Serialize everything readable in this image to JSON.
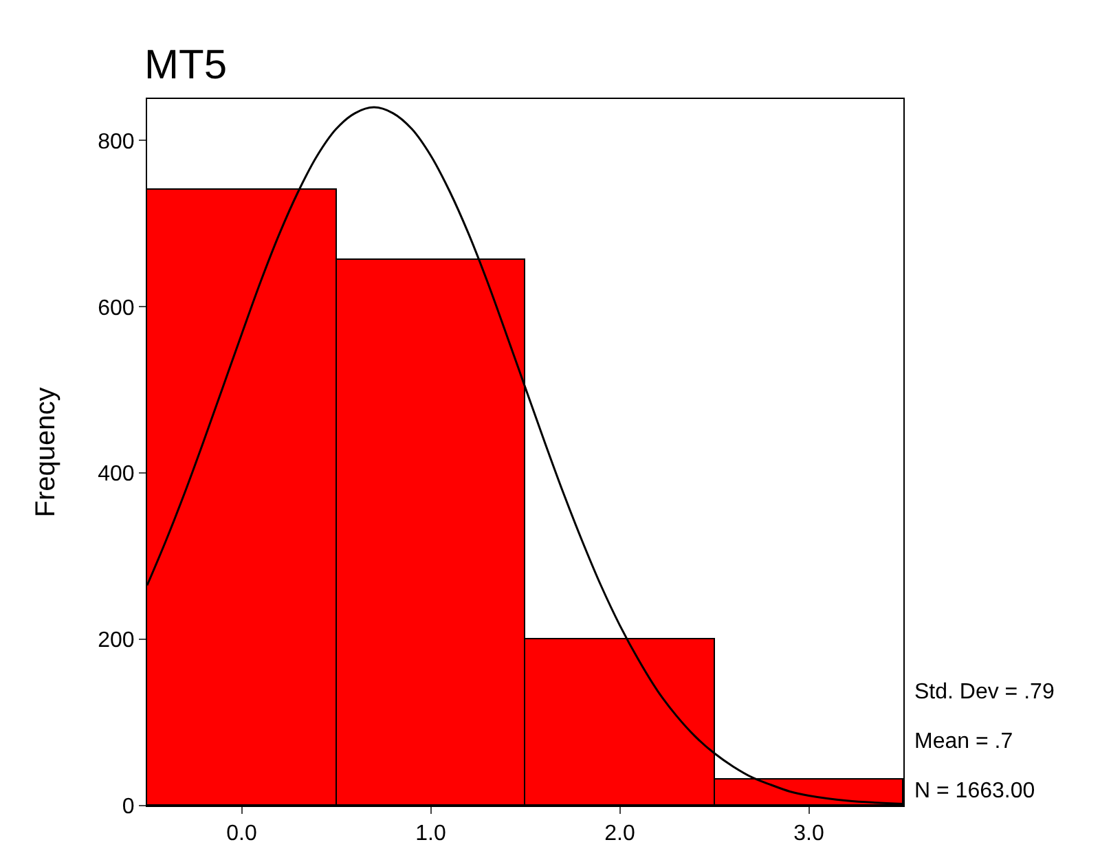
{
  "chart_data": {
    "type": "histogram",
    "title": "MT5",
    "ylabel": "Frequency",
    "bins": [
      -0.5,
      0.5,
      1.5,
      2.5,
      3.5
    ],
    "values": [
      741,
      657,
      200,
      32
    ],
    "color": "#ff0000",
    "series": [
      {
        "type": "line",
        "color": "#000000",
        "x": [
          -0.5,
          -0.4,
          -0.3,
          -0.2,
          -0.1,
          0,
          0.1,
          0.2,
          0.3,
          0.4,
          0.5,
          0.6,
          0.7,
          0.8,
          0.9,
          1.0,
          1.1,
          1.2,
          1.3,
          1.4,
          1.5,
          1.6,
          1.7,
          1.8,
          1.9,
          2.0,
          2.1,
          2.2,
          2.3,
          2.4,
          2.5,
          2.6,
          2.7,
          2.8,
          2.9,
          3.0,
          3.2,
          3.5
        ],
        "values": [
          265,
          319,
          377,
          439,
          503,
          567,
          630,
          688,
          739,
          782,
          814,
          833,
          840,
          833,
          814,
          782,
          739,
          688,
          630,
          567,
          503,
          439,
          377,
          319,
          265,
          217,
          175,
          138,
          108,
          83,
          63,
          47,
          34,
          25,
          17,
          12,
          6,
          2
        ]
      }
    ],
    "xlim": [
      -0.5,
      3.5
    ],
    "xticks": [
      {
        "value": 0,
        "label": "0.0"
      },
      {
        "value": 1,
        "label": "1.0"
      },
      {
        "value": 2,
        "label": "2.0"
      },
      {
        "value": 3,
        "label": "3.0"
      }
    ],
    "ylim": [
      0,
      850
    ],
    "yticks": [
      0,
      200,
      400,
      600,
      800
    ],
    "annotations": [
      "Std. Dev = .79",
      "Mean = .7",
      "N = 1663.00"
    ]
  }
}
